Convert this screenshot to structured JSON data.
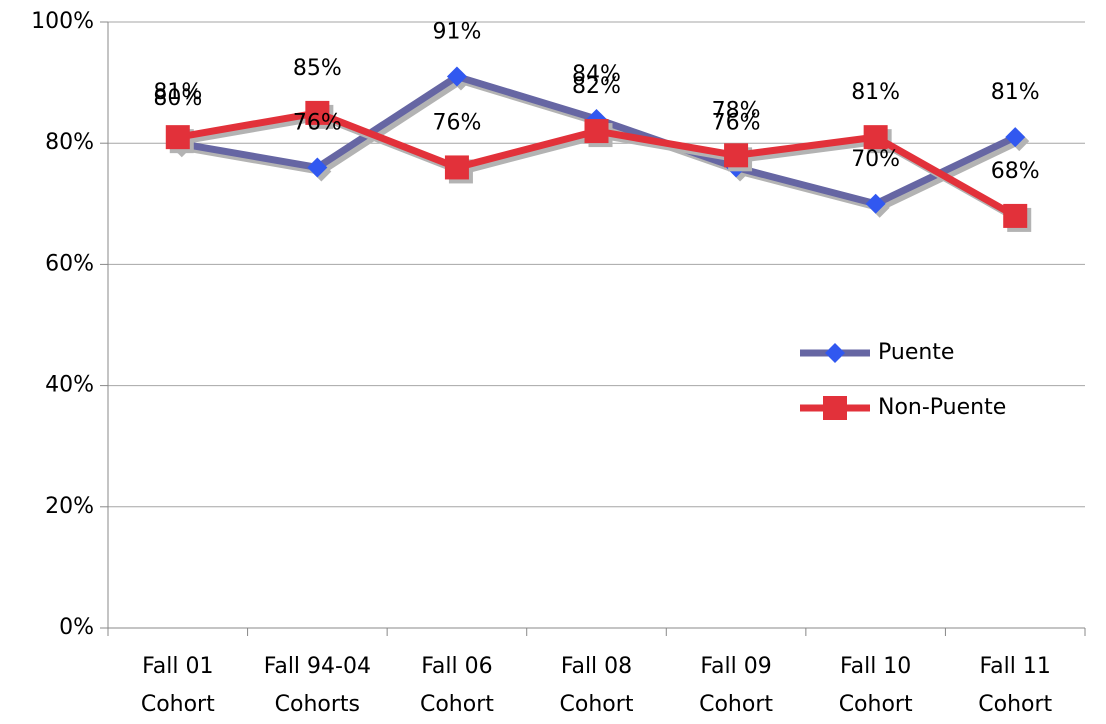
{
  "chart_data": {
    "type": "line",
    "categories": [
      "Fall 01 Cohort",
      "Fall 94-04 Cohorts",
      "Fall 06 Cohort",
      "Fall 08 Cohort",
      "Fall 09 Cohort",
      "Fall 10 Cohort",
      "Fall 11 Cohort"
    ],
    "series": [
      {
        "name": "Puente",
        "color": "#6666a3",
        "marker": "diamond",
        "marker_color": "#3158f0",
        "values": [
          80,
          76,
          91,
          84,
          76,
          70,
          81
        ],
        "value_labels": [
          "80%",
          "76%",
          "91%",
          "84%",
          "76%",
          "70%",
          "81%"
        ]
      },
      {
        "name": "Non-Puente",
        "color": "#e2313a",
        "marker": "square",
        "marker_color": "#e2313a",
        "values": [
          81,
          85,
          76,
          82,
          78,
          81,
          68
        ],
        "value_labels": [
          "81%",
          "85%",
          "76%",
          "82%",
          "78%",
          "81%",
          "68%"
        ]
      }
    ],
    "ylim": [
      0,
      100
    ],
    "yticks": [
      {
        "value": 0,
        "label": "0%"
      },
      {
        "value": 20,
        "label": "20%"
      },
      {
        "value": 40,
        "label": "40%"
      },
      {
        "value": 60,
        "label": "60%"
      },
      {
        "value": 80,
        "label": "80%"
      },
      {
        "value": 100,
        "label": "100%"
      }
    ],
    "grid": true,
    "legend": "right"
  }
}
